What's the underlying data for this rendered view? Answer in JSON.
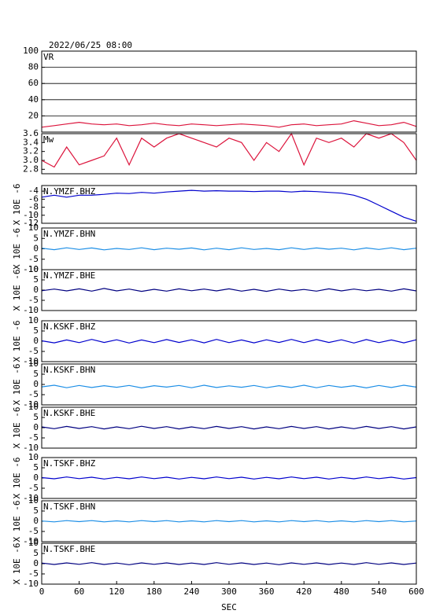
{
  "chart_data": {
    "type": "line",
    "title": "2022/06/25 08:00",
    "xlabel": "SEC",
    "x": [
      0,
      20,
      40,
      60,
      80,
      100,
      120,
      140,
      160,
      180,
      200,
      220,
      240,
      260,
      280,
      300,
      320,
      340,
      360,
      380,
      400,
      420,
      440,
      460,
      480,
      500,
      520,
      540,
      560,
      580,
      600
    ],
    "xlim": [
      0,
      600
    ],
    "xticks": [
      0,
      60,
      120,
      180,
      240,
      300,
      360,
      420,
      480,
      540,
      600
    ],
    "panels": [
      {
        "name": "VR",
        "color": "#dc143c",
        "grid": true,
        "ylim": [
          0,
          100
        ],
        "yticks": [
          20,
          40,
          60,
          80,
          100
        ],
        "values": [
          6,
          8,
          10,
          12,
          10,
          9,
          10,
          8,
          9,
          11,
          9,
          8,
          10,
          9,
          8,
          9,
          10,
          9,
          8,
          6,
          9,
          10,
          8,
          9,
          10,
          14,
          11,
          8,
          9,
          12,
          7
        ]
      },
      {
        "name": "Mw",
        "color": "#dc143c",
        "ylim": [
          2.7,
          3.6
        ],
        "yticks": [
          2.8,
          {
            "value": 3,
            "label": "3.0"
          },
          3.2,
          3.4,
          3.6
        ],
        "values": [
          3.0,
          2.85,
          3.3,
          2.9,
          3.0,
          3.1,
          3.5,
          2.9,
          3.5,
          3.3,
          3.5,
          3.6,
          3.5,
          3.4,
          3.3,
          3.5,
          3.4,
          3.0,
          3.4,
          3.2,
          3.6,
          2.9,
          3.5,
          3.4,
          3.5,
          3.3,
          3.6,
          3.5,
          3.6,
          3.4,
          3.0
        ]
      },
      {
        "name": "N.YMZF.BHZ",
        "ylabel": "X 10E -6",
        "color": "#0000cd",
        "ylim": [
          -12,
          -2.6
        ],
        "yticks": [
          -12,
          -10,
          -8,
          -6,
          -4
        ],
        "values": [
          -5.5,
          -5,
          -5.5,
          -5,
          -5,
          -4.8,
          -4.5,
          -4.6,
          -4.3,
          -4.5,
          -4.2,
          -4,
          -3.8,
          -4,
          -3.9,
          -4,
          -4,
          -4.1,
          -4,
          -4,
          -4.2,
          -4,
          -4.1,
          -4.3,
          -4.5,
          -5,
          -6,
          -7.5,
          -9,
          -10.5,
          -11.5
        ]
      },
      {
        "name": "N.YMZF.BHN",
        "ylabel": "X 10E -6",
        "color": "#1e8fe6",
        "ylim": [
          -10,
          10
        ],
        "yticks": [
          -10,
          -5,
          0,
          5,
          10
        ],
        "values": [
          0.3,
          -0.4,
          0.5,
          -0.3,
          0.4,
          -0.5,
          0.2,
          -0.3,
          0.5,
          -0.4,
          0.3,
          -0.2,
          0.4,
          -0.5,
          0.3,
          -0.4,
          0.5,
          -0.3,
          0.2,
          -0.4,
          0.5,
          -0.3,
          0.4,
          -0.2,
          0.3,
          -0.5,
          0.4,
          -0.3,
          0.5,
          -0.4,
          0.3
        ]
      },
      {
        "name": "N.YMZF.BHE",
        "ylabel": "X 10E -6",
        "color": "#000080",
        "ylim": [
          -10,
          10
        ],
        "yticks": [
          -10,
          -5,
          0,
          5,
          10
        ],
        "values": [
          -0.3,
          0.5,
          -0.4,
          0.6,
          -0.5,
          0.8,
          -0.4,
          0.5,
          -0.6,
          0.4,
          -0.5,
          0.6,
          -0.3,
          0.5,
          -0.4,
          0.6,
          -0.5,
          0.4,
          -0.6,
          0.5,
          -0.4,
          0.3,
          -0.5,
          0.6,
          -0.4,
          0.5,
          -0.3,
          0.4,
          -0.5,
          0.6,
          -0.4
        ]
      },
      {
        "name": "N.KSKF.BHZ",
        "ylabel": "X 10E -6",
        "color": "#0000cd",
        "ylim": [
          -10,
          10
        ],
        "yticks": [
          -10,
          -5,
          0,
          5,
          10
        ],
        "values": [
          0.2,
          -0.8,
          0.6,
          -0.7,
          0.9,
          -0.6,
          0.7,
          -0.9,
          0.6,
          -0.7,
          0.8,
          -0.6,
          0.7,
          -0.8,
          0.9,
          -0.7,
          0.6,
          -0.8,
          0.7,
          -0.6,
          0.9,
          -0.7,
          0.8,
          -0.6,
          0.7,
          -0.9,
          0.8,
          -0.7,
          0.6,
          -0.8,
          0.7
        ]
      },
      {
        "name": "N.KSKF.BHN",
        "ylabel": "X 10E -6",
        "color": "#1e8fe6",
        "ylim": [
          -10,
          10
        ],
        "yticks": [
          -10,
          -5,
          0,
          5,
          10
        ],
        "values": [
          -1.2,
          -0.4,
          -1.6,
          -0.5,
          -1.5,
          -0.6,
          -1.4,
          -0.5,
          -1.7,
          -0.6,
          -1.3,
          -0.5,
          -1.6,
          -0.4,
          -1.5,
          -0.7,
          -1.4,
          -0.5,
          -1.6,
          -0.6,
          -1.5,
          -0.4,
          -1.6,
          -0.5,
          -1.4,
          -0.6,
          -1.7,
          -0.5,
          -1.5,
          -0.4,
          -1.3
        ]
      },
      {
        "name": "N.KSKF.BHE",
        "ylabel": "X 10E -6",
        "color": "#000080",
        "ylim": [
          -10,
          10
        ],
        "yticks": [
          -10,
          -5,
          0,
          5,
          10
        ],
        "values": [
          0.4,
          -0.5,
          0.6,
          -0.4,
          0.5,
          -0.6,
          0.4,
          -0.5,
          0.7,
          -0.4,
          0.5,
          -0.6,
          0.4,
          -0.5,
          0.6,
          -0.4,
          0.5,
          -0.6,
          0.4,
          -0.5,
          0.6,
          -0.4,
          0.5,
          -0.6,
          0.4,
          -0.5,
          0.6,
          -0.4,
          0.5,
          -0.6,
          0.4
        ]
      },
      {
        "name": "N.TSKF.BHZ",
        "ylabel": "X 10E -6",
        "color": "#0000cd",
        "ylim": [
          -10,
          10
        ],
        "yticks": [
          -10,
          -5,
          0,
          5,
          10
        ],
        "values": [
          0.2,
          -0.4,
          0.5,
          -0.3,
          0.4,
          -0.5,
          0.3,
          -0.4,
          0.5,
          -0.3,
          0.4,
          -0.5,
          0.3,
          -0.4,
          0.5,
          -0.3,
          0.4,
          -0.5,
          0.3,
          -0.4,
          0.5,
          -0.3,
          0.4,
          -0.5,
          0.3,
          -0.4,
          0.5,
          -0.3,
          0.4,
          -0.5,
          0.2
        ]
      },
      {
        "name": "N.TSKF.BHN",
        "ylabel": "X 10E -6",
        "color": "#1e8fe6",
        "ylim": [
          -10,
          10
        ],
        "yticks": [
          -10,
          -5,
          0,
          5,
          10
        ],
        "values": [
          0.1,
          -0.3,
          0.3,
          -0.2,
          0.3,
          -0.3,
          0.2,
          -0.3,
          0.3,
          -0.2,
          0.3,
          -0.3,
          0.2,
          -0.3,
          0.3,
          -0.2,
          0.3,
          -0.3,
          0.2,
          -0.3,
          0.3,
          -0.2,
          0.3,
          -0.3,
          0.2,
          -0.3,
          0.3,
          -0.2,
          0.3,
          -0.3,
          0.1
        ]
      },
      {
        "name": "N.TSKF.BHE",
        "ylabel": "X 10E -6",
        "color": "#000080",
        "ylim": [
          -10,
          10
        ],
        "yticks": [
          -10,
          -5,
          0,
          5,
          10
        ],
        "values": [
          0.3,
          -0.4,
          0.4,
          -0.3,
          0.5,
          -0.4,
          0.3,
          -0.5,
          0.4,
          -0.3,
          0.4,
          -0.4,
          0.3,
          -0.4,
          0.5,
          -0.3,
          0.4,
          -0.4,
          0.3,
          -0.5,
          0.4,
          -0.3,
          0.4,
          -0.4,
          0.3,
          -0.4,
          0.5,
          -0.3,
          0.4,
          -0.4,
          0.3
        ]
      }
    ]
  }
}
